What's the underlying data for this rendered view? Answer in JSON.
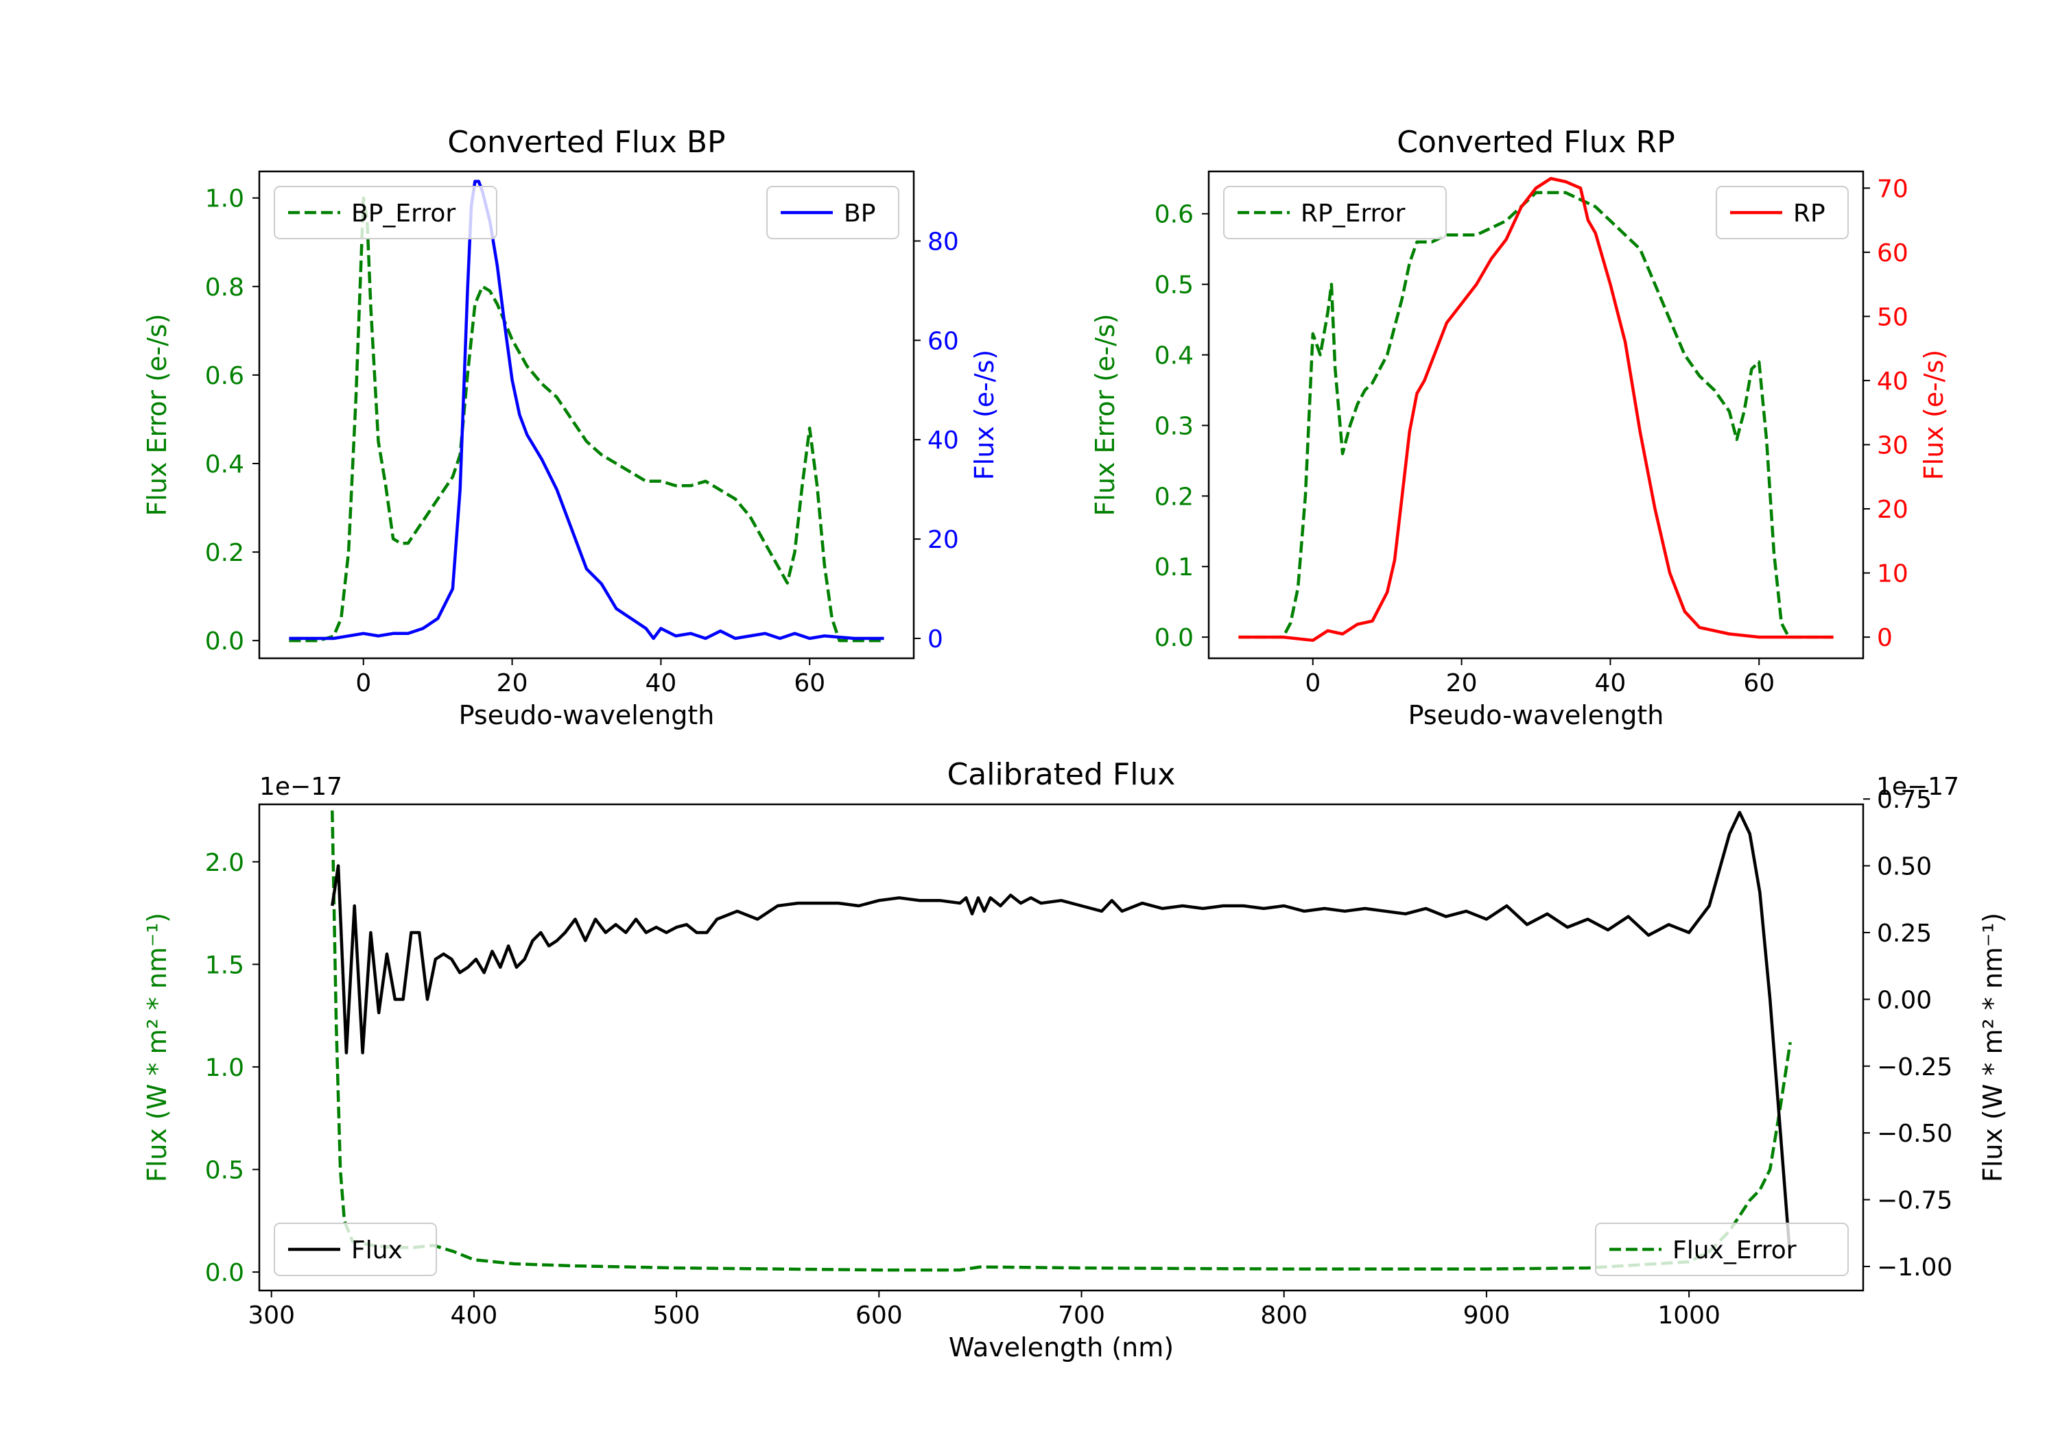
{
  "colors": {
    "green": "#008000",
    "blue": "#0000ff",
    "red": "#ff0000",
    "black": "#000000"
  },
  "chart_data": [
    {
      "id": "bp",
      "type": "line",
      "title": "Converted Flux BP",
      "xlabel": "Pseudo-wavelength",
      "ylabel_left": "Flux Error (e-/s)",
      "ylabel_right": "Flux (e-/s)",
      "xlim": [
        -14,
        74
      ],
      "ylim_left": [
        -0.04,
        1.06
      ],
      "ylim_right": [
        -4,
        94
      ],
      "xticks": [
        0,
        20,
        40,
        60
      ],
      "yticks_left": [
        0.0,
        0.2,
        0.4,
        0.6,
        0.8,
        1.0
      ],
      "yticks_right": [
        0,
        20,
        40,
        60,
        80
      ],
      "legend_left": {
        "label": "BP_Error",
        "placement": "upper-left"
      },
      "legend_right": {
        "label": "BP",
        "placement": "upper-right"
      },
      "series": [
        {
          "name": "BP_Error",
          "axis": "left",
          "style": "dashed",
          "color": "#008000",
          "x": [
            -10,
            -6,
            -4,
            -3,
            -2,
            -1,
            0,
            0.5,
            1,
            2,
            3,
            4,
            5,
            6,
            8,
            10,
            12,
            13,
            14,
            15,
            16,
            17,
            18,
            20,
            22,
            24,
            26,
            28,
            30,
            32,
            34,
            36,
            38,
            40,
            42,
            44,
            46,
            48,
            50,
            52,
            54,
            56,
            57,
            58,
            59,
            60,
            61,
            62,
            63,
            64,
            66,
            70
          ],
          "y": [
            0.0,
            0.0,
            0.01,
            0.05,
            0.2,
            0.55,
            1.0,
            0.95,
            0.75,
            0.45,
            0.35,
            0.23,
            0.22,
            0.22,
            0.27,
            0.32,
            0.37,
            0.42,
            0.6,
            0.76,
            0.8,
            0.79,
            0.76,
            0.68,
            0.62,
            0.58,
            0.55,
            0.5,
            0.45,
            0.42,
            0.4,
            0.38,
            0.36,
            0.36,
            0.35,
            0.35,
            0.36,
            0.34,
            0.32,
            0.28,
            0.22,
            0.16,
            0.13,
            0.2,
            0.35,
            0.48,
            0.35,
            0.17,
            0.05,
            0.0,
            0.0,
            0.0
          ]
        },
        {
          "name": "BP",
          "axis": "right",
          "style": "solid",
          "color": "#0000ff",
          "x": [
            -10,
            -4,
            0,
            2,
            4,
            6,
            8,
            10,
            12,
            13,
            14,
            14.5,
            15,
            15.5,
            16,
            17,
            18,
            19,
            20,
            21,
            22,
            24,
            26,
            28,
            30,
            32,
            34,
            36,
            38,
            39,
            40,
            42,
            44,
            46,
            48,
            50,
            52,
            54,
            56,
            58,
            60,
            62,
            66,
            70
          ],
          "y": [
            0,
            0,
            1,
            0.5,
            1,
            1,
            2,
            4,
            10,
            30,
            70,
            87,
            92,
            92,
            90,
            84,
            75,
            63,
            52,
            45,
            41,
            36,
            30,
            22,
            14,
            11,
            6,
            4,
            2,
            0,
            2,
            0.5,
            1,
            0,
            1.5,
            0,
            0.5,
            1,
            0,
            1,
            0,
            0.5,
            0,
            0
          ]
        }
      ]
    },
    {
      "id": "rp",
      "type": "line",
      "title": "Converted Flux RP",
      "xlabel": "Pseudo-wavelength",
      "ylabel_left": "Flux Error (e-/s)",
      "ylabel_right": "Flux (e-/s)",
      "xlim": [
        -14,
        74
      ],
      "ylim_left": [
        -0.03,
        0.66
      ],
      "ylim_right": [
        -3.3,
        72.6
      ],
      "xticks": [
        0,
        20,
        40,
        60
      ],
      "yticks_left": [
        0.0,
        0.1,
        0.2,
        0.3,
        0.4,
        0.5,
        0.6
      ],
      "yticks_right": [
        0,
        10,
        20,
        30,
        40,
        50,
        60,
        70
      ],
      "legend_left": {
        "label": "RP_Error",
        "placement": "upper-left"
      },
      "legend_right": {
        "label": "RP",
        "placement": "upper-right"
      },
      "series": [
        {
          "name": "RP_Error",
          "axis": "left",
          "style": "dashed",
          "color": "#008000",
          "x": [
            -10,
            -4,
            -3,
            -2,
            -1,
            0,
            1,
            2,
            2.5,
            3,
            4,
            5,
            6,
            7,
            8,
            10,
            12,
            13,
            14,
            16,
            18,
            20,
            22,
            24,
            26,
            28,
            30,
            32,
            34,
            36,
            38,
            40,
            42,
            44,
            46,
            48,
            50,
            52,
            54,
            56,
            57,
            58,
            59,
            60,
            61,
            62,
            63,
            64,
            66,
            70
          ],
          "y": [
            0.0,
            0.0,
            0.02,
            0.07,
            0.2,
            0.43,
            0.4,
            0.46,
            0.5,
            0.38,
            0.26,
            0.3,
            0.33,
            0.35,
            0.36,
            0.4,
            0.48,
            0.53,
            0.56,
            0.56,
            0.57,
            0.57,
            0.57,
            0.58,
            0.59,
            0.61,
            0.63,
            0.63,
            0.63,
            0.62,
            0.61,
            0.59,
            0.57,
            0.55,
            0.5,
            0.45,
            0.4,
            0.37,
            0.35,
            0.32,
            0.28,
            0.32,
            0.38,
            0.39,
            0.28,
            0.12,
            0.02,
            0.0,
            0.0,
            0.0
          ]
        },
        {
          "name": "RP",
          "axis": "right",
          "style": "solid",
          "color": "#ff0000",
          "x": [
            -10,
            -4,
            0,
            2,
            4,
            6,
            8,
            10,
            11,
            12,
            13,
            14,
            15,
            16,
            18,
            20,
            22,
            24,
            26,
            28,
            30,
            32,
            34,
            36,
            37,
            38,
            40,
            42,
            44,
            46,
            48,
            50,
            52,
            54,
            56,
            60,
            66,
            70
          ],
          "y": [
            0,
            0,
            -0.5,
            1,
            0.5,
            2,
            2.5,
            7,
            12,
            22,
            32,
            38,
            40,
            43,
            49,
            52,
            55,
            59,
            62,
            67,
            70,
            71.5,
            71,
            70,
            65,
            63,
            55,
            46,
            32,
            20,
            10,
            4,
            1.5,
            1,
            0.5,
            0,
            0,
            0
          ]
        }
      ]
    },
    {
      "id": "cal",
      "type": "line",
      "title": "Calibrated Flux",
      "xlabel": "Wavelength (nm)",
      "ylabel_left": "Flux (W * m² * nm⁻¹)",
      "ylabel_right": "Flux (W * m² * nm⁻¹)",
      "offset_left": "1e−17",
      "offset_right": "1e−17",
      "xlim": [
        294,
        1086
      ],
      "ylim_left": [
        -0.09,
        2.28
      ],
      "ylim_right": [
        -1.09,
        0.73
      ],
      "xticks": [
        300,
        400,
        500,
        600,
        700,
        800,
        900,
        1000
      ],
      "yticks_left": [
        0.0,
        0.5,
        1.0,
        1.5,
        2.0
      ],
      "yticks_right": [
        -1.0,
        -0.75,
        -0.5,
        -0.25,
        0.0,
        0.25,
        0.5,
        0.75
      ],
      "legend_left": {
        "label": "Flux",
        "placement": "lower-left"
      },
      "legend_right": {
        "label": "Flux_Error",
        "placement": "lower-right"
      },
      "series": [
        {
          "name": "Flux_Error",
          "axis": "left",
          "style": "dashed",
          "color": "#008000",
          "x": [
            330,
            332,
            334,
            336,
            340,
            350,
            360,
            370,
            380,
            390,
            400,
            420,
            450,
            500,
            600,
            640,
            650,
            700,
            800,
            900,
            950,
            1000,
            1010,
            1020,
            1030,
            1035,
            1040,
            1045,
            1050
          ],
          "y": [
            2.25,
            1.2,
            0.5,
            0.25,
            0.15,
            0.13,
            0.12,
            0.12,
            0.13,
            0.1,
            0.06,
            0.04,
            0.03,
            0.02,
            0.01,
            0.01,
            0.025,
            0.02,
            0.015,
            0.015,
            0.02,
            0.05,
            0.1,
            0.2,
            0.35,
            0.4,
            0.5,
            0.8,
            1.12
          ]
        },
        {
          "name": "Flux",
          "axis": "right",
          "style": "solid",
          "color": "#000000",
          "x": [
            330,
            333,
            337,
            341,
            345,
            349,
            353,
            357,
            361,
            365,
            369,
            373,
            377,
            381,
            385,
            389,
            393,
            397,
            401,
            405,
            409,
            413,
            417,
            421,
            425,
            429,
            433,
            437,
            441,
            445,
            450,
            455,
            460,
            465,
            470,
            475,
            480,
            485,
            490,
            495,
            500,
            505,
            510,
            515,
            520,
            530,
            540,
            550,
            560,
            570,
            580,
            590,
            600,
            610,
            620,
            630,
            640,
            643,
            646,
            649,
            652,
            655,
            660,
            665,
            670,
            675,
            680,
            690,
            700,
            710,
            715,
            720,
            730,
            740,
            750,
            760,
            770,
            780,
            790,
            800,
            810,
            820,
            830,
            840,
            850,
            860,
            870,
            880,
            890,
            900,
            910,
            920,
            930,
            940,
            950,
            960,
            970,
            980,
            990,
            1000,
            1010,
            1020,
            1025,
            1030,
            1035,
            1040,
            1050
          ],
          "y": [
            0.35,
            0.5,
            -0.2,
            0.35,
            -0.2,
            0.25,
            -0.05,
            0.17,
            0.0,
            0.0,
            0.25,
            0.25,
            0.0,
            0.15,
            0.17,
            0.15,
            0.1,
            0.12,
            0.15,
            0.1,
            0.18,
            0.12,
            0.2,
            0.12,
            0.15,
            0.22,
            0.25,
            0.2,
            0.22,
            0.25,
            0.3,
            0.22,
            0.3,
            0.25,
            0.28,
            0.25,
            0.3,
            0.25,
            0.27,
            0.25,
            0.27,
            0.28,
            0.25,
            0.25,
            0.3,
            0.33,
            0.3,
            0.35,
            0.36,
            0.36,
            0.36,
            0.35,
            0.37,
            0.38,
            0.37,
            0.37,
            0.36,
            0.38,
            0.32,
            0.38,
            0.33,
            0.38,
            0.35,
            0.39,
            0.36,
            0.38,
            0.36,
            0.37,
            0.35,
            0.33,
            0.37,
            0.33,
            0.36,
            0.34,
            0.35,
            0.34,
            0.35,
            0.35,
            0.34,
            0.35,
            0.33,
            0.34,
            0.33,
            0.34,
            0.33,
            0.32,
            0.34,
            0.31,
            0.33,
            0.3,
            0.35,
            0.28,
            0.32,
            0.27,
            0.3,
            0.26,
            0.31,
            0.24,
            0.28,
            0.25,
            0.35,
            0.62,
            0.7,
            0.62,
            0.4,
            0.0,
            -0.97
          ]
        }
      ]
    }
  ]
}
